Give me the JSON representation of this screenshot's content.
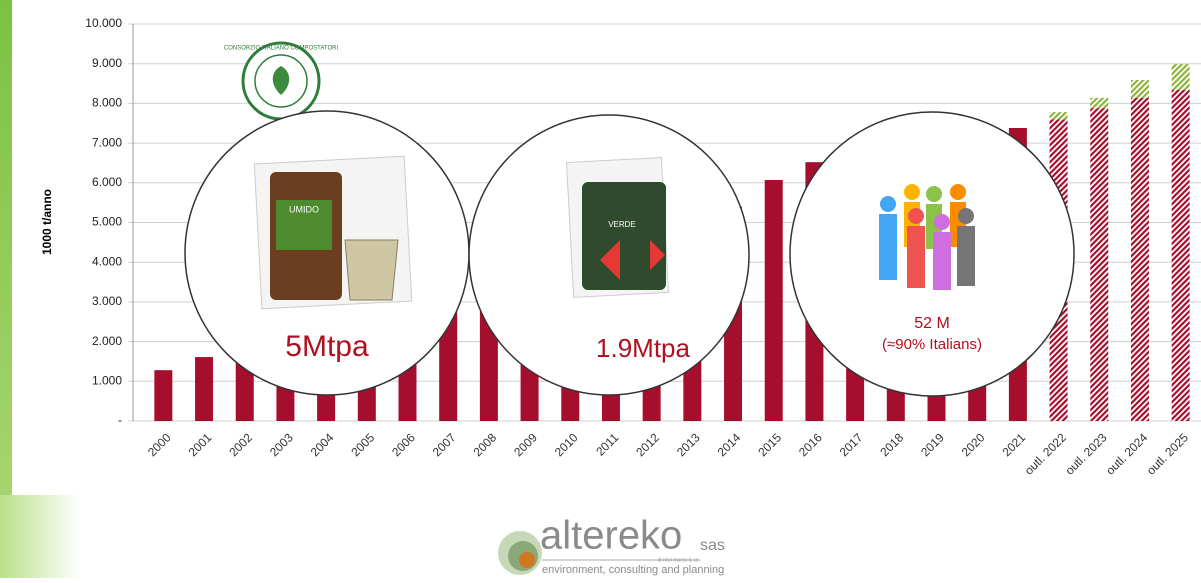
{
  "chart_data": {
    "type": "bar",
    "y_label": "1000 t/anno",
    "categories": [
      "2000",
      "2001",
      "2002",
      "2003",
      "2004",
      "2005",
      "2006",
      "2007",
      "2008",
      "2009",
      "2010",
      "2011",
      "2012",
      "2013",
      "2014",
      "2015",
      "2016",
      "2017",
      "2018",
      "2019",
      "2020",
      "2021",
      "outl. 2022",
      "outl. 2023",
      "outl. 2024",
      "outl. 2025"
    ],
    "series": [
      {
        "color": "#a50f2d",
        "pattern": "solid",
        "values": [
          1280,
          1610,
          1850,
          2000,
          2100,
          2200,
          2400,
          2800,
          3350,
          3500,
          3700,
          4100,
          4500,
          4900,
          5400,
          6070,
          6520,
          6700,
          6800,
          7000,
          7200,
          7380,
          null,
          null,
          null,
          null
        ]
      },
      {
        "color": "#a50f2d",
        "pattern": "hatch",
        "values": [
          null,
          null,
          null,
          null,
          null,
          null,
          null,
          null,
          null,
          null,
          null,
          null,
          null,
          null,
          null,
          null,
          null,
          null,
          null,
          null,
          null,
          null,
          7600,
          7880,
          8140,
          8340
        ]
      },
      {
        "color": "#8db33a",
        "pattern": "hatch",
        "values": [
          null,
          null,
          null,
          null,
          null,
          null,
          null,
          null,
          null,
          null,
          null,
          null,
          null,
          null,
          null,
          null,
          null,
          null,
          null,
          null,
          null,
          null,
          180,
          260,
          450,
          650
        ]
      }
    ],
    "stacked": true,
    "ylim": [
      0,
      10000
    ],
    "yticks": [
      {
        "value": 0,
        "label": "-"
      },
      {
        "value": 1000,
        "label": "1.000"
      },
      {
        "value": 2000,
        "label": "2.000"
      },
      {
        "value": 3000,
        "label": "3.000"
      },
      {
        "value": 4000,
        "label": "4.000"
      },
      {
        "value": 5000,
        "label": "5.000"
      },
      {
        "value": 6000,
        "label": "6.000"
      },
      {
        "value": 7000,
        "label": "7.000"
      },
      {
        "value": 8000,
        "label": "8.000"
      },
      {
        "value": 9000,
        "label": "9.000"
      },
      {
        "value": 10000,
        "label": "10.000"
      }
    ],
    "grid": true,
    "annotations": [
      "5Mtpa",
      "1.9Mtpa",
      "52 M",
      "(≈90% Italians)"
    ]
  },
  "badge": "CONSORZIO ITALIANO COMPOSTATORI",
  "bin_labels": [
    "UMIDO",
    "VERDE"
  ],
  "logo": {
    "name": "altereko",
    "suffix": "sas",
    "owner": "di ricci marco & co.",
    "tagline": "environment, consulting and planning"
  }
}
